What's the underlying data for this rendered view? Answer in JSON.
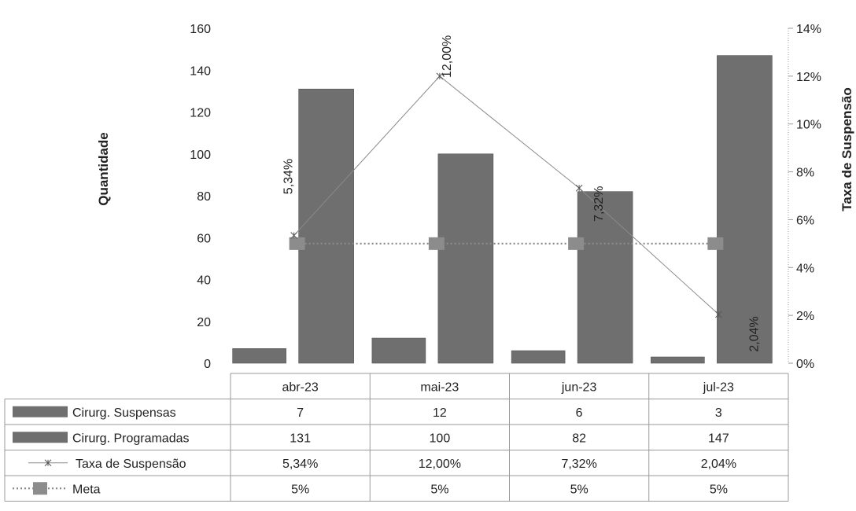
{
  "chart_data": {
    "type": "bar",
    "categories": [
      "abr-23",
      "mai-23",
      "jun-23",
      "jul-23"
    ],
    "series": [
      {
        "name": "Cirurg. Suspensas",
        "kind": "bar",
        "axis": "left",
        "values": [
          7,
          12,
          6,
          3
        ],
        "color": "#6f6f6f"
      },
      {
        "name": "Cirurg. Programadas",
        "kind": "bar",
        "axis": "left",
        "values": [
          131,
          100,
          82,
          147
        ],
        "color": "#6f6f6f"
      },
      {
        "name": "Taxa de Suspensão",
        "kind": "line",
        "axis": "right",
        "values": [
          5.34,
          12.0,
          7.32,
          2.04
        ],
        "labels": [
          "5,34%",
          "12,00%",
          "7,32%",
          "2,04%"
        ],
        "color": "#8a8a8a"
      },
      {
        "name": "Meta",
        "kind": "line-dotted",
        "axis": "right",
        "values": [
          5,
          5,
          5,
          5
        ],
        "labels": [
          "5%",
          "5%",
          "5%",
          "5%"
        ],
        "color": "#8a8a8a"
      }
    ],
    "ylabel": "Quantidade",
    "y2label": "Taxa de Suspensão",
    "ylim": [
      0,
      160
    ],
    "y2lim": [
      0,
      14
    ],
    "yticks": [
      "0",
      "20",
      "40",
      "60",
      "80",
      "100",
      "120",
      "140",
      "160"
    ],
    "y2ticks": [
      "0%",
      "2%",
      "4%",
      "6%",
      "8%",
      "10%",
      "12%",
      "14%"
    ],
    "data_table": [
      [
        "7",
        "12",
        "6",
        "3"
      ],
      [
        "131",
        "100",
        "82",
        "147"
      ],
      [
        "5,34%",
        "12,00%",
        "7,32%",
        "2,04%"
      ],
      [
        "5%",
        "5%",
        "5%",
        "5%"
      ]
    ],
    "grid": false,
    "legend": "data-table"
  }
}
